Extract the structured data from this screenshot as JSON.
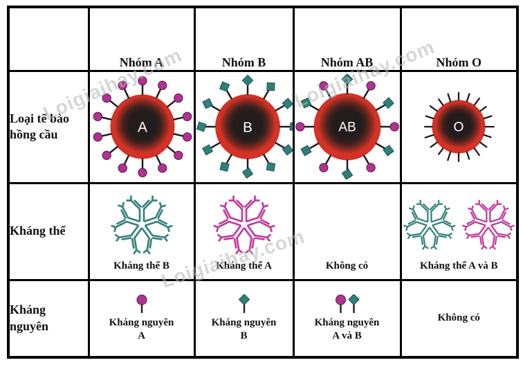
{
  "watermark": "Loigiaihay.com",
  "colors": {
    "cell_red": "#d43226",
    "cell_core": "#221c1d",
    "spike": "#1b1b1b",
    "antigen_a": "#b23191",
    "antigen_a_outline": "#4f1744",
    "antigen_b": "#2f7f7a",
    "antigen_b_outline": "#1c524e",
    "antibody_b_color": "#35827d",
    "antibody_a_color": "#c23a9e",
    "letter": "#ffffff",
    "grid": "#000000"
  },
  "row_labels": [
    "Loại tế bào hồng cầu",
    "Kháng thể",
    "Kháng nguyên"
  ],
  "columns": [
    {
      "group": "Nhóm A",
      "cell": {
        "label": "A",
        "radius": 49,
        "spikes": 14,
        "tips": [
          "circle"
        ]
      },
      "antibody": {
        "clusters": [
          "teal"
        ],
        "caption": "Kháng thể B"
      },
      "antigen": {
        "heads": [
          "circle"
        ],
        "caption_line1": "Kháng nguyên",
        "caption_line2": "A"
      }
    },
    {
      "group": "Nhóm B",
      "cell": {
        "label": "B",
        "radius": 50,
        "spikes": 12,
        "tips": [
          "diamond"
        ]
      },
      "antibody": {
        "clusters": [
          "pink"
        ],
        "caption": "Kháng thể A"
      },
      "antigen": {
        "heads": [
          "diamond"
        ],
        "caption_line1": "Kháng nguyên",
        "caption_line2": "B"
      }
    },
    {
      "group": "Nhóm AB",
      "cell": {
        "label": "AB",
        "radius": 51,
        "spikes": 12,
        "tips": [
          "diamond",
          "circle"
        ]
      },
      "antibody": {
        "clusters": [],
        "caption": "Không có"
      },
      "antigen": {
        "heads": [
          "circle",
          "diamond"
        ],
        "caption_line1": "Kháng nguyên",
        "caption_line2": "A và B"
      }
    },
    {
      "group": "Nhóm O",
      "cell": {
        "label": "O",
        "radius": 44,
        "spikes": 20,
        "tips": [
          "bare"
        ]
      },
      "antibody": {
        "clusters": [
          "teal",
          "pink"
        ],
        "caption": "Kháng thể A và B"
      },
      "antigen": {
        "heads": [],
        "caption_line1": "Không có",
        "caption_line2": ""
      }
    }
  ]
}
